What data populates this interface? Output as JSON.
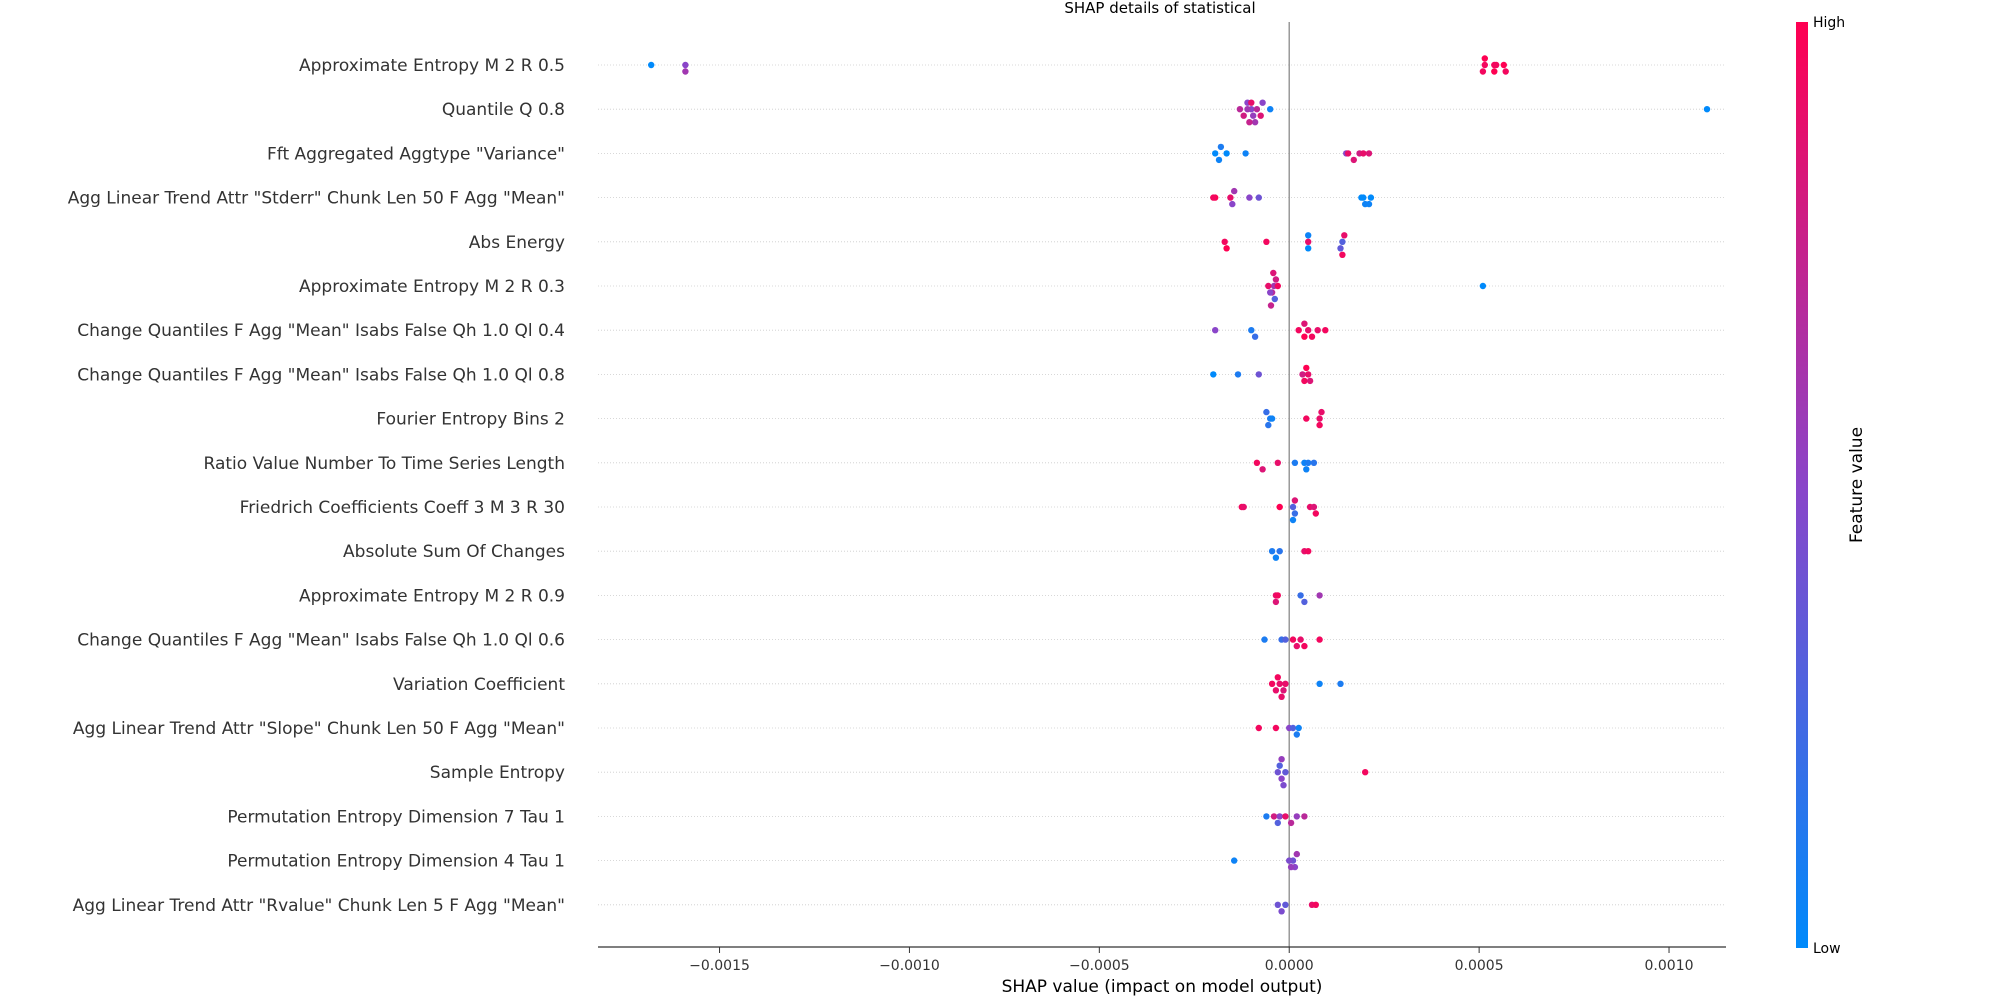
{
  "chart_data": {
    "type": "scatter",
    "subtype": "shap-beeswarm",
    "title": "SHAP details of statistical",
    "xlabel": "SHAP value (impact on model output)",
    "xlim": [
      -0.00182,
      0.00115
    ],
    "xticks": [
      {
        "value": -0.0015,
        "label": "−0.0015"
      },
      {
        "value": -0.001,
        "label": "−0.0010"
      },
      {
        "value": -0.0005,
        "label": "−0.0005"
      },
      {
        "value": 0.0,
        "label": "0.0000"
      },
      {
        "value": 0.0005,
        "label": "0.0005"
      },
      {
        "value": 0.001,
        "label": "0.0010"
      }
    ],
    "colorbar": {
      "title": "Feature value",
      "high_label": "High",
      "low_label": "Low",
      "low_color": "#008afb",
      "mid_color": "#8a45c9",
      "high_color": "#ff0052"
    },
    "features": [
      {
        "name": "Approximate Entropy  M 2  R 0.5",
        "points": [
          [
            -0.00168,
            0.0
          ],
          [
            -0.00159,
            0.5
          ],
          [
            -0.00159,
            0.6
          ],
          [
            0.000515,
            0.95
          ],
          [
            0.00054,
            0.95
          ],
          [
            0.000565,
            1.0
          ],
          [
            0.00051,
            0.95
          ],
          [
            0.00054,
            1.0
          ],
          [
            0.00057,
            0.95
          ],
          [
            0.000515,
            1.0
          ],
          [
            0.000545,
            0.95
          ]
        ]
      },
      {
        "name": "Quantile  Q 0.8",
        "points": [
          [
            -0.0001,
            0.5
          ],
          [
            -0.00011,
            0.6
          ],
          [
            -9.5e-05,
            0.55
          ],
          [
            -0.00012,
            0.8
          ],
          [
            -8.5e-05,
            0.7
          ],
          [
            -0.00011,
            0.5
          ],
          [
            -0.0001,
            0.9
          ],
          [
            -7.5e-05,
            0.85
          ],
          [
            -0.00013,
            0.7
          ],
          [
            -9e-05,
            0.6
          ],
          [
            -7e-05,
            0.5
          ],
          [
            -0.000105,
            0.75
          ],
          [
            -5e-05,
            0.05
          ],
          [
            0.0011,
            0.0
          ]
        ]
      },
      {
        "name": "Fft Aggregated  Aggtype \"Variance\"",
        "points": [
          [
            -0.000195,
            0.0
          ],
          [
            -0.000185,
            0.05
          ],
          [
            -0.00018,
            0.1
          ],
          [
            -0.000165,
            0.0
          ],
          [
            -0.000115,
            0.05
          ],
          [
            0.00015,
            0.5
          ],
          [
            0.000155,
            0.9
          ],
          [
            0.00017,
            0.85
          ],
          [
            0.000185,
            0.8
          ],
          [
            0.000195,
            0.9
          ],
          [
            0.00021,
            0.85
          ]
        ]
      },
      {
        "name": "Agg Linear Trend  Attr \"Stderr\"  Chunk Len 50  F Agg \"Mean\"",
        "points": [
          [
            -0.000195,
            1.0
          ],
          [
            -0.0002,
            0.95
          ],
          [
            -0.000155,
            0.9
          ],
          [
            -0.00015,
            0.5
          ],
          [
            -0.000145,
            0.6
          ],
          [
            -0.000105,
            0.5
          ],
          [
            -8e-05,
            0.4
          ],
          [
            0.000195,
            0.0
          ],
          [
            0.000215,
            0.0
          ],
          [
            0.0002,
            0.05
          ],
          [
            0.00021,
            0.05
          ],
          [
            0.00019,
            0.0
          ]
        ]
      },
      {
        "name": "Abs Energy",
        "points": [
          [
            -0.00017,
            0.95
          ],
          [
            -0.000165,
            1.0
          ],
          [
            -6e-05,
            0.95
          ],
          [
            5e-05,
            0.9
          ],
          [
            5e-05,
            0.0
          ],
          [
            5e-05,
            0.05
          ],
          [
            0.00014,
            0.3
          ],
          [
            0.000135,
            0.35
          ],
          [
            0.000145,
            0.9
          ],
          [
            0.00014,
            0.95
          ]
        ]
      },
      {
        "name": "Approximate Entropy  M 2  R 0.3",
        "points": [
          [
            -4e-05,
            0.6
          ],
          [
            -4.5e-05,
            0.7
          ],
          [
            -3.5e-05,
            0.8
          ],
          [
            -5.5e-05,
            0.9
          ],
          [
            -3e-05,
            0.95
          ],
          [
            -5e-05,
            0.5
          ],
          [
            -3.8e-05,
            0.3
          ],
          [
            -4.2e-05,
            0.85
          ],
          [
            -4.8e-05,
            0.75
          ],
          [
            0.00051,
            0.0
          ]
        ]
      },
      {
        "name": "Change Quantiles  F Agg \"Mean\"  Isabs False  Qh 1.0  Ql 0.4",
        "points": [
          [
            -0.000195,
            0.5
          ],
          [
            -0.0001,
            0.1
          ],
          [
            -9e-05,
            0.2
          ],
          [
            2.5e-05,
            0.95
          ],
          [
            5e-05,
            0.9
          ],
          [
            6e-05,
            0.95
          ],
          [
            4e-05,
            1.0
          ],
          [
            7.5e-05,
            0.9
          ],
          [
            9.5e-05,
            0.95
          ],
          [
            4e-05,
            0.85
          ]
        ]
      },
      {
        "name": "Change Quantiles  F Agg \"Mean\"  Isabs False  Qh 1.0  Ql 0.8",
        "points": [
          [
            -0.0002,
            0.0
          ],
          [
            -0.000135,
            0.1
          ],
          [
            -8e-05,
            0.4
          ],
          [
            3.5e-05,
            0.8
          ],
          [
            5e-05,
            0.9
          ],
          [
            4e-05,
            0.95
          ],
          [
            5.5e-05,
            0.85
          ],
          [
            4.5e-05,
            1.0
          ]
        ]
      },
      {
        "name": "Fourier Entropy  Bins 2",
        "points": [
          [
            -5e-05,
            0.1
          ],
          [
            -5.5e-05,
            0.15
          ],
          [
            -4.5e-05,
            0.05
          ],
          [
            -6e-05,
            0.2
          ],
          [
            4.5e-05,
            0.95
          ],
          [
            8e-05,
            0.9
          ],
          [
            8e-05,
            0.95
          ],
          [
            8.5e-05,
            0.9
          ]
        ]
      },
      {
        "name": "Ratio Value Number To Time Series Length",
        "points": [
          [
            -8.5e-05,
            0.95
          ],
          [
            -7e-05,
            0.85
          ],
          [
            -3e-05,
            0.9
          ],
          [
            1.5e-05,
            0.1
          ],
          [
            4e-05,
            0.05
          ],
          [
            5e-05,
            0.1
          ],
          [
            6.5e-05,
            0.15
          ],
          [
            4.5e-05,
            0.05
          ]
        ]
      },
      {
        "name": "Friedrich Coefficients  Coeff 3  M 3  R 30",
        "points": [
          [
            -0.000125,
            0.95
          ],
          [
            -0.00012,
            0.9
          ],
          [
            -2.5e-05,
            1.0
          ],
          [
            1e-05,
            0.3
          ],
          [
            1.5e-05,
            0.2
          ],
          [
            1.5e-05,
            0.85
          ],
          [
            5.5e-05,
            0.9
          ],
          [
            6.5e-05,
            0.85
          ],
          [
            7e-05,
            0.95
          ],
          [
            1e-05,
            0.05
          ]
        ]
      },
      {
        "name": "Absolute Sum Of Changes",
        "points": [
          [
            -4.5e-05,
            0.1
          ],
          [
            -3.5e-05,
            0.05
          ],
          [
            -2.5e-05,
            0.15
          ],
          [
            4e-05,
            0.9
          ],
          [
            5e-05,
            0.95
          ]
        ]
      },
      {
        "name": "Approximate Entropy  M 2  R 0.9",
        "points": [
          [
            -3.5e-05,
            0.9
          ],
          [
            -3e-05,
            0.95
          ],
          [
            -3.5e-05,
            0.85
          ],
          [
            3e-05,
            0.2
          ],
          [
            4e-05,
            0.3
          ],
          [
            8e-05,
            0.6
          ]
        ]
      },
      {
        "name": "Change Quantiles  F Agg \"Mean\"  Isabs False  Qh 1.0  Ql 0.6",
        "points": [
          [
            -6.5e-05,
            0.1
          ],
          [
            -2e-05,
            0.2
          ],
          [
            -1e-05,
            0.3
          ],
          [
            1e-05,
            0.95
          ],
          [
            2e-05,
            0.9
          ],
          [
            3e-05,
            0.9
          ],
          [
            4e-05,
            0.95
          ],
          [
            8e-05,
            0.95
          ]
        ]
      },
      {
        "name": "Variation Coefficient",
        "points": [
          [
            -4.5e-05,
            0.95
          ],
          [
            -3.5e-05,
            0.9
          ],
          [
            -2.5e-05,
            0.9
          ],
          [
            -1.5e-05,
            0.85
          ],
          [
            -3e-05,
            0.95
          ],
          [
            -2e-05,
            0.9
          ],
          [
            -1e-05,
            0.9
          ],
          [
            8e-05,
            0.05
          ],
          [
            0.000135,
            0.1
          ]
        ]
      },
      {
        "name": "Agg Linear Trend  Attr \"Slope\"  Chunk Len 50  F Agg \"Mean\"",
        "points": [
          [
            -8e-05,
            0.95
          ],
          [
            -3.5e-05,
            0.95
          ],
          [
            0.0,
            0.5
          ],
          [
            1e-05,
            0.3
          ],
          [
            2e-05,
            0.1
          ],
          [
            2.5e-05,
            0.05
          ]
        ]
      },
      {
        "name": "Sample Entropy",
        "points": [
          [
            -3e-05,
            0.4
          ],
          [
            -2e-05,
            0.5
          ],
          [
            -2.5e-05,
            0.3
          ],
          [
            -1e-05,
            0.35
          ],
          [
            -1.5e-05,
            0.45
          ],
          [
            -2e-05,
            0.55
          ],
          [
            0.0002,
            0.95
          ]
        ]
      },
      {
        "name": "Permutation Entropy  Dimension 7  Tau 1",
        "points": [
          [
            -6e-05,
            0.1
          ],
          [
            -4e-05,
            0.8
          ],
          [
            -2.5e-05,
            0.5
          ],
          [
            -1e-05,
            0.9
          ],
          [
            5e-06,
            0.7
          ],
          [
            2e-05,
            0.55
          ],
          [
            4e-05,
            0.7
          ],
          [
            -3e-05,
            0.3
          ]
        ]
      },
      {
        "name": "Permutation Entropy  Dimension 4  Tau 1",
        "points": [
          [
            -0.000145,
            0.05
          ],
          [
            1e-05,
            0.4
          ],
          [
            1.5e-05,
            0.5
          ],
          [
            0.0,
            0.45
          ],
          [
            2e-05,
            0.6
          ],
          [
            5e-06,
            0.55
          ]
        ]
      },
      {
        "name": "Agg Linear Trend  Attr \"Rvalue\"  Chunk Len 5  F Agg \"Mean\"",
        "points": [
          [
            -3e-05,
            0.4
          ],
          [
            -2e-05,
            0.45
          ],
          [
            -1e-05,
            0.35
          ],
          [
            6e-05,
            0.9
          ],
          [
            7e-05,
            0.95
          ]
        ]
      }
    ]
  }
}
